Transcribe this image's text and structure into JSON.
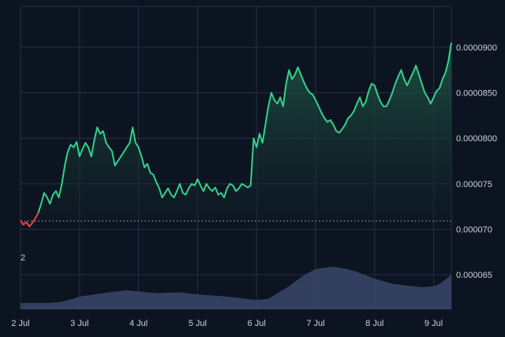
{
  "chart_data": {
    "type": "area",
    "title": "",
    "xlabel": "",
    "ylabel": "",
    "x_ticks": [
      "2 Jul",
      "3 Jul",
      "4 Jul",
      "5 Jul",
      "6 Jul",
      "7 Jul",
      "8 Jul",
      "9 Jul"
    ],
    "y_ticks": [
      "0.0000900",
      "0.0000850",
      "0.0000800",
      "0.000075",
      "0.000070",
      "0.000065"
    ],
    "y_tick_values": [
      9e-05,
      8.5e-05,
      8e-05,
      7.5e-05,
      7e-05,
      6.5e-05
    ],
    "ylim": [
      6.12e-05,
      9.45e-05
    ],
    "xlim": [
      0,
      7.3
    ],
    "baseline_value": 7.09e-05,
    "volume_axis_label": "2",
    "grid": true,
    "colors": {
      "background": "#0d1421",
      "grid": "#243044",
      "up_line": "#34d08a",
      "down_line": "#e8434e",
      "area_top": "#1f5a48",
      "area_bottom": "#0f1e26",
      "baseline": "#8a94a6",
      "volume": "#3a4668",
      "text": "#c9d1dc"
    },
    "series": [
      {
        "x": [
          0.0,
          0.05,
          0.1,
          0.15,
          0.2,
          0.25,
          0.3,
          0.35,
          0.4,
          0.45,
          0.5,
          0.55,
          0.6,
          0.65,
          0.7,
          0.75,
          0.8,
          0.85,
          0.9,
          0.95,
          1.0,
          1.05,
          1.1,
          1.15,
          1.2,
          1.25,
          1.3,
          1.35,
          1.4,
          1.45,
          1.5,
          1.55,
          1.6,
          1.65,
          1.7,
          1.75,
          1.8,
          1.85,
          1.9,
          1.95,
          2.0,
          2.05,
          2.1,
          2.15,
          2.2,
          2.25,
          2.3,
          2.35,
          2.4,
          2.45,
          2.5,
          2.55,
          2.6,
          2.65,
          2.7,
          2.75,
          2.8,
          2.85,
          2.9,
          2.95,
          3.0,
          3.05,
          3.1,
          3.15,
          3.2,
          3.25,
          3.3,
          3.35,
          3.4,
          3.45,
          3.5,
          3.55,
          3.6,
          3.65,
          3.7,
          3.75,
          3.8,
          3.85,
          3.9,
          3.95,
          4.0,
          4.05,
          4.1,
          4.15,
          4.2,
          4.25,
          4.3,
          4.35,
          4.4,
          4.45,
          4.5,
          4.55,
          4.6,
          4.65,
          4.7,
          4.75,
          4.8,
          4.85,
          4.9,
          4.95,
          5.0,
          5.05,
          5.1,
          5.15,
          5.2,
          5.25,
          5.3,
          5.35,
          5.4,
          5.45,
          5.5,
          5.55,
          5.6,
          5.65,
          5.7,
          5.75,
          5.8,
          5.85,
          5.9,
          5.95,
          6.0,
          6.05,
          6.1,
          6.15,
          6.2,
          6.25,
          6.3,
          6.35,
          6.4,
          6.45,
          6.5,
          6.55,
          6.6,
          6.65,
          6.7,
          6.75,
          6.8,
          6.85,
          6.9,
          6.95,
          7.0,
          7.05,
          7.1,
          7.15,
          7.2,
          7.25,
          7.3
        ],
        "y": [
          7.1e-05,
          7.05e-05,
          7.08e-05,
          7.03e-05,
          7.07e-05,
          7.12e-05,
          7.18e-05,
          7.28e-05,
          7.4e-05,
          7.35e-05,
          7.28e-05,
          7.38e-05,
          7.42e-05,
          7.35e-05,
          7.5e-05,
          7.7e-05,
          7.85e-05,
          7.93e-05,
          7.9e-05,
          7.96e-05,
          7.8e-05,
          7.88e-05,
          7.95e-05,
          7.9e-05,
          7.8e-05,
          7.98e-05,
          8.12e-05,
          8.05e-05,
          8.08e-05,
          7.95e-05,
          7.9e-05,
          7.86e-05,
          7.7e-05,
          7.75e-05,
          7.8e-05,
          7.85e-05,
          7.9e-05,
          7.95e-05,
          8.12e-05,
          7.95e-05,
          7.9e-05,
          7.8e-05,
          7.68e-05,
          7.72e-05,
          7.62e-05,
          7.6e-05,
          7.52e-05,
          7.45e-05,
          7.35e-05,
          7.4e-05,
          7.45e-05,
          7.38e-05,
          7.35e-05,
          7.42e-05,
          7.5e-05,
          7.4e-05,
          7.38e-05,
          7.45e-05,
          7.5e-05,
          7.48e-05,
          7.55e-05,
          7.48e-05,
          7.42e-05,
          7.5e-05,
          7.45e-05,
          7.42e-05,
          7.46e-05,
          7.38e-05,
          7.4e-05,
          7.35e-05,
          7.45e-05,
          7.5e-05,
          7.48e-05,
          7.42e-05,
          7.45e-05,
          7.5e-05,
          7.48e-05,
          7.46e-05,
          7.48e-05,
          8e-05,
          7.9e-05,
          8.05e-05,
          7.95e-05,
          8.15e-05,
          8.35e-05,
          8.5e-05,
          8.42e-05,
          8.38e-05,
          8.45e-05,
          8.35e-05,
          8.6e-05,
          8.75e-05,
          8.65e-05,
          8.7e-05,
          8.78e-05,
          8.7e-05,
          8.62e-05,
          8.55e-05,
          8.5e-05,
          8.48e-05,
          8.42e-05,
          8.35e-05,
          8.28e-05,
          8.22e-05,
          8.18e-05,
          8.2e-05,
          8.15e-05,
          8.08e-05,
          8.06e-05,
          8.1e-05,
          8.15e-05,
          8.22e-05,
          8.25e-05,
          8.3e-05,
          8.38e-05,
          8.45e-05,
          8.35e-05,
          8.4e-05,
          8.52e-05,
          8.6e-05,
          8.58e-05,
          8.48e-05,
          8.4e-05,
          8.35e-05,
          8.35e-05,
          8.42e-05,
          8.5e-05,
          8.6e-05,
          8.68e-05,
          8.75e-05,
          8.65e-05,
          8.58e-05,
          8.65e-05,
          8.72e-05,
          8.8e-05,
          8.7e-05,
          8.6e-05,
          8.5e-05,
          8.45e-05,
          8.38e-05,
          8.45e-05,
          8.52e-05,
          8.55e-05,
          8.65e-05,
          8.72e-05,
          8.85e-05,
          9.05e-05
        ]
      }
    ],
    "volume": {
      "x": [
        0.0,
        0.5,
        0.7,
        0.9,
        1.0,
        1.5,
        1.8,
        2.0,
        2.3,
        2.7,
        3.0,
        3.5,
        4.0,
        4.2,
        4.5,
        4.8,
        5.0,
        5.3,
        5.5,
        5.7,
        6.0,
        6.3,
        6.6,
        6.8,
        7.0,
        7.1,
        7.2,
        7.3
      ],
      "v": [
        0.15,
        0.15,
        0.18,
        0.25,
        0.3,
        0.4,
        0.45,
        0.42,
        0.38,
        0.4,
        0.35,
        0.3,
        0.22,
        0.25,
        0.5,
        0.8,
        0.95,
        1.0,
        0.96,
        0.88,
        0.72,
        0.6,
        0.55,
        0.52,
        0.54,
        0.6,
        0.7,
        0.82
      ]
    }
  }
}
